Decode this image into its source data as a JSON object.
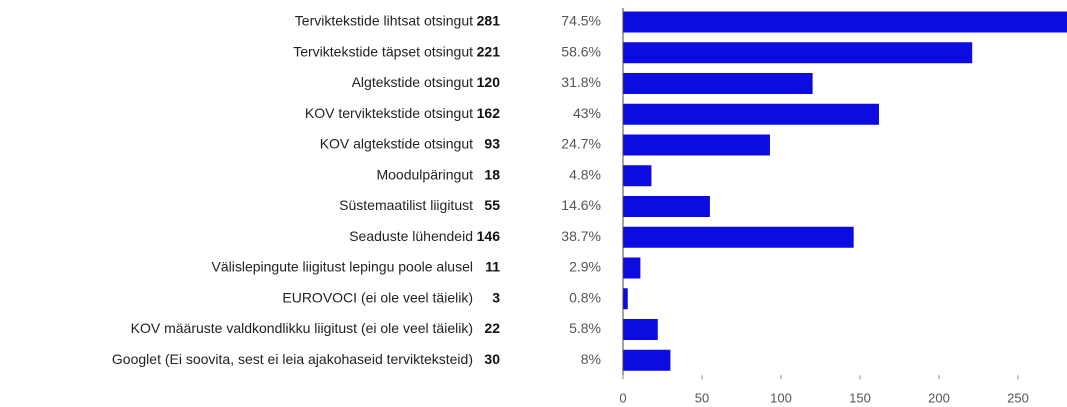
{
  "chart_data": {
    "type": "bar",
    "orientation": "horizontal",
    "categories": [
      "Terviktekstide lihtsat otsingut",
      "Terviktekstide täpset otsingut",
      "Algtekstide otsingut",
      "KOV terviktekstide otsingut",
      "KOV algtekstide otsingut",
      "Moodulpäringut",
      "Süstemaatilist liigitust",
      "Seaduste lühendeid",
      "Välislepingute liigitust lepingu poole alusel",
      "EUROVOCI (ei ole veel täielik)",
      "KOV määruste valdkondlikku liigitust (ei ole veel täielik)",
      "Googlet (Ei soovita, sest ei leia ajakohaseid tervikteksteid)"
    ],
    "values": [
      281,
      221,
      120,
      162,
      93,
      18,
      55,
      146,
      11,
      3,
      22,
      30
    ],
    "percentages": [
      74.5,
      58.6,
      31.8,
      43,
      24.7,
      4.8,
      14.6,
      38.7,
      2.9,
      0.8,
      5.8,
      8
    ],
    "percentage_labels": [
      "74.5%",
      "58.6%",
      "31.8%",
      "43%",
      "24.7%",
      "4.8%",
      "14.6%",
      "38.7%",
      "2.9%",
      "0.8%",
      "5.8%",
      "8%"
    ],
    "color": "#0c0ce0",
    "xlim": [
      0,
      281
    ],
    "xticks": [
      0,
      50,
      100,
      150,
      200,
      250
    ],
    "grid": false
  }
}
